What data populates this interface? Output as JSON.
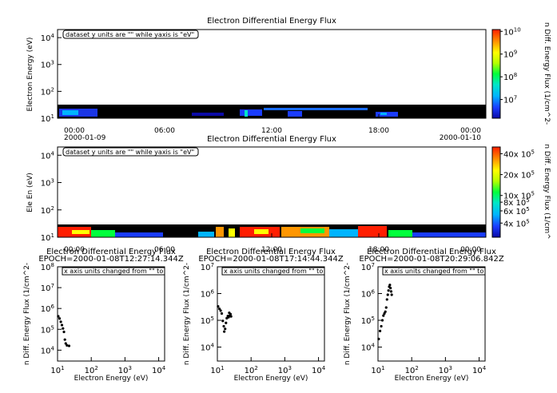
{
  "chart_data": [
    {
      "type": "heatmap",
      "title": "Electron Differential Energy Flux",
      "ylabel": "Electron Energy (eV)",
      "y_scale": "log",
      "ylim": [
        10,
        20000
      ],
      "y_ticks": [
        {
          "value": 10,
          "base": "10",
          "exp": "1"
        },
        {
          "value": 100,
          "base": "10",
          "exp": "2"
        },
        {
          "value": 1000,
          "base": "10",
          "exp": "3"
        },
        {
          "value": 10000,
          "base": "10",
          "exp": "4"
        }
      ],
      "x_ticks": [
        {
          "hour": 0,
          "label": "00:00",
          "date": "2000-01-09"
        },
        {
          "hour": 6,
          "label": "06:00",
          "date": ""
        },
        {
          "hour": 12,
          "label": "12:00",
          "date": ""
        },
        {
          "hour": 18,
          "label": "18:00",
          "date": ""
        },
        {
          "hour": 24,
          "label": "00:00",
          "date": "2000-01-10"
        }
      ],
      "xlim": [
        "2000-01-09T00:00",
        "2000-01-10T00:00"
      ],
      "annotation": "dataset y units are \"\" while yaxis is \"eV\"",
      "colorbar": {
        "label": "n Diff. Energy Flux (1/cm^2-",
        "scale": "log",
        "ticks": [
          {
            "value": 10000000,
            "base": "10",
            "exp": "7"
          },
          {
            "value": 100000000,
            "base": "10",
            "exp": "8"
          },
          {
            "value": 1000000000,
            "base": "10",
            "exp": "9"
          },
          {
            "value": 10000000000,
            "base": "10",
            "exp": "10"
          }
        ],
        "range": [
          1500000,
          12000000000
        ]
      }
    },
    {
      "type": "heatmap",
      "title": "Electron Differential Energy Flux",
      "ylabel": "Ele En (eV)",
      "y_scale": "log",
      "ylim": [
        10,
        20000
      ],
      "y_ticks": [
        {
          "value": 10,
          "base": "10",
          "exp": "1"
        },
        {
          "value": 100,
          "base": "10",
          "exp": "2"
        },
        {
          "value": 1000,
          "base": "10",
          "exp": "3"
        },
        {
          "value": 10000,
          "base": "10",
          "exp": "4"
        }
      ],
      "x_ticks": [
        {
          "hour": 0,
          "label": "00:00"
        },
        {
          "hour": 6,
          "label": "06:00"
        },
        {
          "hour": 12,
          "label": "12:00"
        },
        {
          "hour": 18,
          "label": "18:00"
        },
        {
          "hour": 24,
          "label": "00:00"
        }
      ],
      "annotation": "dataset y units are \"\" while yaxis is \"eV\"",
      "colorbar": {
        "label": "n Diff. Energy Flux (1/cm^",
        "scale": "linear",
        "ticks": [
          {
            "value": 400000,
            "label": "4x 10",
            "exp": "5"
          },
          {
            "value": 600000,
            "label": "6x 10",
            "exp": "5"
          },
          {
            "value": 800000,
            "label": "8x 10",
            "exp": "5"
          },
          {
            "value": 1000000,
            "label": "10x 10",
            "exp": "5"
          },
          {
            "value": 2000000,
            "label": "20x 10",
            "exp": "5"
          },
          {
            "value": 4000000,
            "label": "40x 10",
            "exp": "5"
          }
        ],
        "range": [
          250000,
          5000000
        ]
      }
    },
    {
      "type": "scatter",
      "title": "Electron Differential Energy Flux",
      "subtitle": "EPOCH=2000-01-08T12:27:14.344Z",
      "xlabel": "Electron Energy (eV)",
      "ylabel": "n Diff. Energy Flux (1/cm^2-",
      "x_scale": "log",
      "y_scale": "log",
      "xlim": [
        10,
        15000
      ],
      "ylim": [
        3000,
        100000000
      ],
      "annotation": "x axis units changed from \"\" to",
      "points": [
        {
          "x": 10.5,
          "y": 420000
        },
        {
          "x": 11.5,
          "y": 330000
        },
        {
          "x": 12.5,
          "y": 230000
        },
        {
          "x": 13.5,
          "y": 160000
        },
        {
          "x": 14.5,
          "y": 110000
        },
        {
          "x": 15.5,
          "y": 75000
        },
        {
          "x": 16.5,
          "y": 32000
        },
        {
          "x": 17.5,
          "y": 21000
        },
        {
          "x": 19.0,
          "y": 17000
        },
        {
          "x": 22.0,
          "y": 16000
        }
      ]
    },
    {
      "type": "scatter",
      "title": "Electron Differential Energy Flux",
      "subtitle": "EPOCH=2000-01-08T17:14:44.344Z",
      "xlabel": "Electron Energy (eV)",
      "ylabel": "n Diff. Energy Flux (1/cm^2-",
      "x_scale": "log",
      "y_scale": "log",
      "xlim": [
        10,
        15000
      ],
      "ylim": [
        3000,
        10000000
      ],
      "annotation": "x axis units changed from \"\" to",
      "points": [
        {
          "x": 10.5,
          "y": 330000
        },
        {
          "x": 11.5,
          "y": 270000
        },
        {
          "x": 12.5,
          "y": 230000
        },
        {
          "x": 13.5,
          "y": 180000
        },
        {
          "x": 14.5,
          "y": 95000
        },
        {
          "x": 15.5,
          "y": 60000
        },
        {
          "x": 16.0,
          "y": 38000
        },
        {
          "x": 17.0,
          "y": 48000
        },
        {
          "x": 18.0,
          "y": 80000
        },
        {
          "x": 19.0,
          "y": 120000
        },
        {
          "x": 20.5,
          "y": 145000
        },
        {
          "x": 21.5,
          "y": 130000
        },
        {
          "x": 22.5,
          "y": 190000
        },
        {
          "x": 23.5,
          "y": 150000
        },
        {
          "x": 24.5,
          "y": 170000
        },
        {
          "x": 25.5,
          "y": 140000
        }
      ]
    },
    {
      "type": "scatter",
      "title": "Electron Differential Energy Flux",
      "subtitle": "EPOCH=2000-01-08T20:29:06.842Z",
      "xlabel": "Electron Energy (eV)",
      "ylabel": "n Diff. Energy Flux (1/cm^2-",
      "x_scale": "log",
      "y_scale": "log",
      "xlim": [
        10,
        15000
      ],
      "ylim": [
        3000,
        10000000
      ],
      "annotation": "x axis units changed from \"\" to",
      "points": [
        {
          "x": 10.5,
          "y": 20000
        },
        {
          "x": 11.5,
          "y": 40000
        },
        {
          "x": 12.5,
          "y": 60000
        },
        {
          "x": 13.5,
          "y": 100000
        },
        {
          "x": 14.5,
          "y": 150000
        },
        {
          "x": 15.5,
          "y": 180000
        },
        {
          "x": 16.5,
          "y": 210000
        },
        {
          "x": 17.5,
          "y": 300000
        },
        {
          "x": 18.5,
          "y": 600000
        },
        {
          "x": 19.5,
          "y": 900000
        },
        {
          "x": 20.5,
          "y": 1300000
        },
        {
          "x": 21.5,
          "y": 1800000
        },
        {
          "x": 22.5,
          "y": 2100000
        },
        {
          "x": 23.5,
          "y": 1600000
        },
        {
          "x": 24.5,
          "y": 1200000
        },
        {
          "x": 25.5,
          "y": 900000
        }
      ]
    }
  ]
}
